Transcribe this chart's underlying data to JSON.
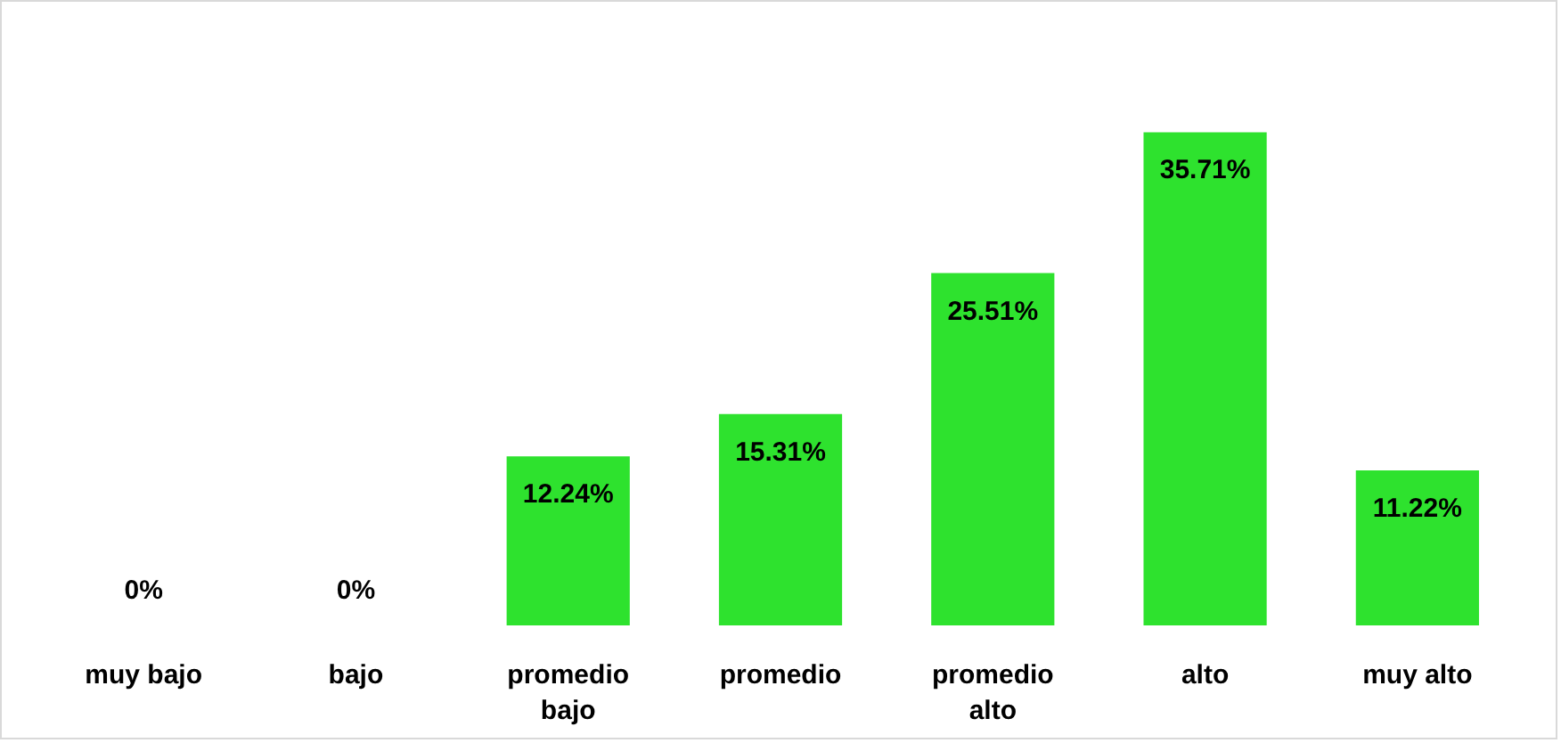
{
  "chart_data": {
    "type": "bar",
    "categories": [
      "muy bajo",
      "bajo",
      "promedio bajo",
      "promedio",
      "promedio alto",
      "alto",
      "muy alto"
    ],
    "values": [
      0,
      0,
      12.24,
      15.31,
      25.51,
      35.71,
      11.22
    ],
    "value_labels": [
      "0%",
      "0%",
      "12.24%",
      "15.31%",
      "25.51%",
      "35.71%",
      "11.22%"
    ],
    "color": "#2ee22e",
    "grid": false
  }
}
